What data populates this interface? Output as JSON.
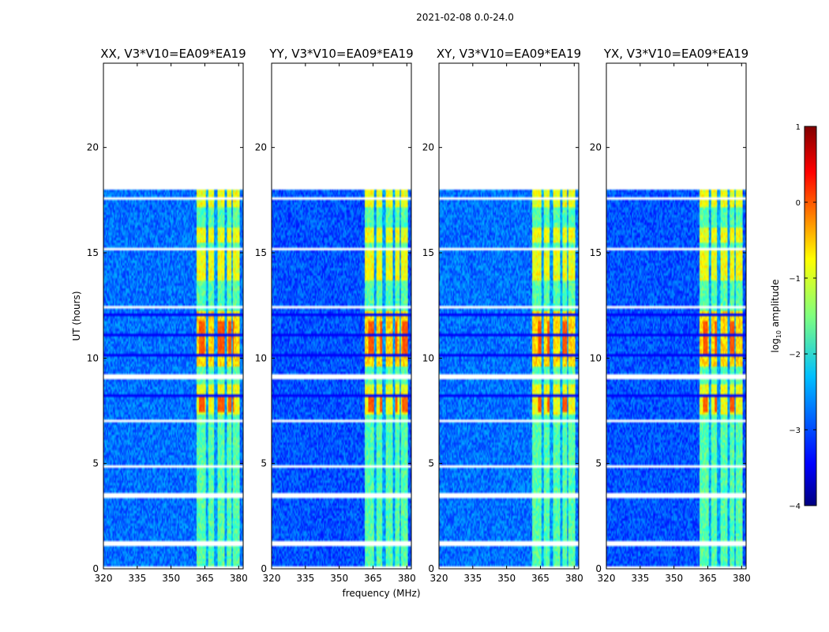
{
  "chart_data": {
    "type": "heatmap",
    "title": "2021-02-08 0.0-24.0",
    "xlabel": "frequency (MHz)",
    "ylabel": "UT (hours)",
    "xlim": [
      320,
      382
    ],
    "ylim": [
      0,
      24
    ],
    "xticks": [
      320,
      335,
      350,
      365,
      380
    ],
    "yticks": [
      0,
      5,
      10,
      15,
      20
    ],
    "panels": [
      {
        "title": "XX, V3*V10=EA09*EA19",
        "edge_source": "x",
        "rfi_peaks": [
          363.5,
          370.5,
          373.0,
          376.5
        ]
      },
      {
        "title": "YY, V3*V10=EA09*EA19",
        "edge_source": "y",
        "rfi_peaks": [
          364.2,
          369.0,
          374.8,
          379.0
        ]
      },
      {
        "title": "XY, V3*V10=EA09*EA19",
        "edge_source": "x",
        "rfi_peaks": [
          365.0,
          369.5,
          376.0
        ]
      },
      {
        "title": "YX, V3*V10=EA09*EA19",
        "edge_source": "y",
        "rfi_peaks": [
          364.0,
          369.5,
          376.0
        ]
      }
    ],
    "data_end_hours": 18.05,
    "rfi_band_mhz": [
      361.5,
      380.5
    ],
    "rfi_columns_mhz": [
      [
        361.5,
        365.5
      ],
      [
        366.5,
        369.3
      ],
      [
        370.5,
        373.8
      ],
      [
        375.0,
        376.6
      ],
      [
        377.4,
        380.5
      ]
    ],
    "blank_rows_hours": [
      [
        0.0,
        0.07
      ],
      [
        0.33,
        0.4
      ],
      [
        1.1,
        1.28
      ],
      [
        3.38,
        3.6
      ],
      [
        4.75,
        4.95
      ],
      [
        7.0,
        7.1
      ],
      [
        9.0,
        9.25
      ],
      [
        12.42,
        12.52
      ],
      [
        15.18,
        15.3
      ],
      [
        17.52,
        17.62
      ]
    ],
    "bright_times_hours": [
      [
        7.3,
        8.8
      ],
      [
        9.6,
        12.2
      ],
      [
        15.5,
        16.2
      ],
      [
        17.2,
        18.05
      ],
      [
        13.7,
        15.1
      ]
    ],
    "colorbar": {
      "label": "log10 amplitude",
      "label_base": "log",
      "label_sub": "10",
      "label_rest": " amplitude",
      "min": -4,
      "max": 1,
      "ticks": [
        1,
        0,
        -1,
        -2,
        -3,
        -4
      ],
      "tick_labels": [
        "1",
        "0",
        "−1",
        "−2",
        "−3",
        "−4"
      ],
      "colormap": "jet"
    }
  }
}
